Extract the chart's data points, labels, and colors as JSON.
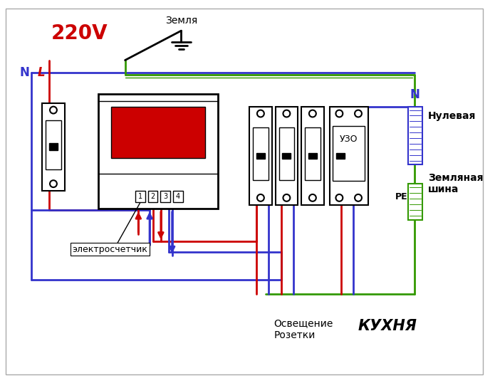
{
  "bg": "#ffffff",
  "red": "#cc0000",
  "blue": "#3333cc",
  "green": "#339900",
  "black": "#000000",
  "label_220": "220V",
  "label_N_left": "N",
  "label_L": "L",
  "label_earth": "Земля",
  "label_meter": "электросчетчик",
  "label_uzo": "УЗО",
  "label_N_right": "N",
  "label_nulevaya": "Нулевая",
  "label_zemshina": "Земляная\nшина",
  "label_PE": "PE",
  "label_osv": "Освещение\nРозетки",
  "label_kuhnya": "КУХНЯ",
  "terminals": [
    "1",
    "2",
    "3",
    "4"
  ]
}
